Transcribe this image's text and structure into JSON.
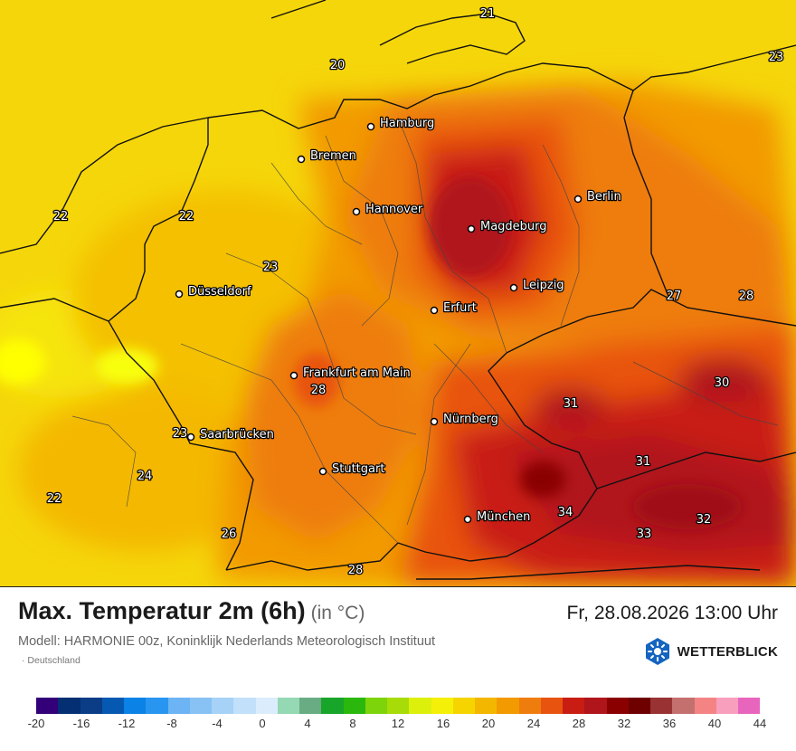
{
  "header": {
    "title": "Max. Temperatur 2m (6h)",
    "unit": "(in °C)",
    "datetime": "Fr, 28.08.2026 13:00 Uhr",
    "model": "Modell: HARMONIE 00z, Koninklijk Nederlands Meteorologisch Instituut",
    "region": "Deutschland"
  },
  "brand": {
    "name": "WETTERBLICK",
    "color": "#1565c0"
  },
  "cities": [
    {
      "name": "Hamburg"
    },
    {
      "name": "Bremen"
    },
    {
      "name": "Hannover"
    },
    {
      "name": "Berlin"
    },
    {
      "name": "Magdeburg"
    },
    {
      "name": "Düsseldorf"
    },
    {
      "name": "Leipzig"
    },
    {
      "name": "Erfurt"
    },
    {
      "name": "Frankfurt am Main"
    },
    {
      "name": "Nürnberg"
    },
    {
      "name": "Saarbrücken"
    },
    {
      "name": "Stuttgart"
    },
    {
      "name": "München"
    }
  ],
  "values": [
    "21",
    "20",
    "23",
    "22",
    "22",
    "23",
    "27",
    "28",
    "28",
    "30",
    "31",
    "31",
    "23",
    "24",
    "22",
    "34",
    "32",
    "33",
    "26",
    "28"
  ],
  "legend": {
    "colors": [
      "#34007a",
      "#052f73",
      "#0b3d86",
      "#0559b0",
      "#0b82e6",
      "#2896f0",
      "#6cb4f4",
      "#88c2f5",
      "#a6d2f7",
      "#c2e0fa",
      "#dbedfc",
      "#94d8b4",
      "#69ac84",
      "#17a52a",
      "#2bb80c",
      "#7ed40a",
      "#a7dc08",
      "#ddf00b",
      "#f5f008",
      "#f6d400",
      "#f4b700",
      "#f29a00",
      "#ee7d0e",
      "#e8530f",
      "#c91d13",
      "#b0151b",
      "#8a0000",
      "#6e0000",
      "#993333",
      "#c4706f",
      "#f48484",
      "#f89fbd",
      "#e865bd"
    ],
    "ticks": [
      "-20",
      "-16",
      "-12",
      "-8",
      "-4",
      "0",
      "4",
      "8",
      "12",
      "16",
      "20",
      "24",
      "28",
      "32",
      "36",
      "40",
      "44"
    ]
  }
}
